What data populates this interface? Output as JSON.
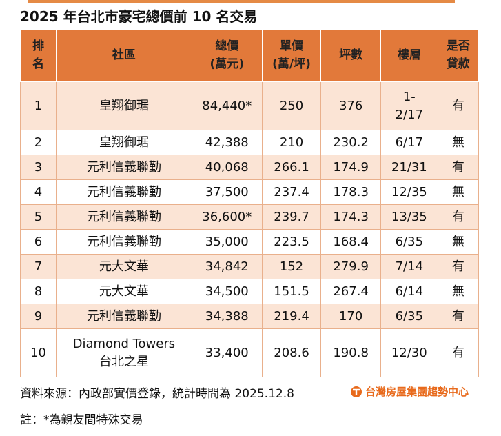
{
  "header": {
    "title": "2025 年台北市豪宅總價前 10 名交易"
  },
  "table": {
    "columns": [
      [
        "排",
        "名"
      ],
      [
        "社區"
      ],
      [
        "總價",
        "(萬元)"
      ],
      [
        "單價",
        "(萬/坪)"
      ],
      [
        "坪數"
      ],
      [
        "樓層"
      ],
      [
        "是否",
        "貸款"
      ]
    ],
    "rows": [
      [
        "1",
        "皇翔御琚",
        "84,440*",
        "250",
        "376",
        [
          "1-",
          "2/17"
        ],
        "有"
      ],
      [
        "2",
        "皇翔御琚",
        "42,388",
        "210",
        "230.2",
        "6/17",
        "無"
      ],
      [
        "3",
        "元利信義聯勤",
        "40,068",
        "266.1",
        "174.9",
        "21/31",
        "有"
      ],
      [
        "4",
        "元利信義聯勤",
        "37,500",
        "237.4",
        "178.3",
        "12/35",
        "無"
      ],
      [
        "5",
        "元利信義聯勤",
        "36,600*",
        "239.7",
        "174.3",
        "13/35",
        "有"
      ],
      [
        "6",
        "元利信義聯勤",
        "35,000",
        "223.5",
        "168.4",
        "6/35",
        "無"
      ],
      [
        "7",
        "元大文華",
        "34,842",
        "152",
        "279.9",
        "7/14",
        "有"
      ],
      [
        "8",
        "元大文華",
        "34,500",
        "151.5",
        "267.4",
        "6/14",
        "無"
      ],
      [
        "9",
        "元利信義聯勤",
        "34,388",
        "219.4",
        "170",
        "6/35",
        "有"
      ],
      [
        "10",
        [
          "Diamond Towers",
          "台北之星"
        ],
        "33,400",
        "208.6",
        "190.8",
        "12/30",
        "有"
      ]
    ]
  },
  "footer": {
    "source": "資料來源：內政部實價登錄，統計時間為 2025.12.8",
    "logo": "台灣房屋集團趨勢中心",
    "note": "註：*為親友間特殊交易"
  }
}
